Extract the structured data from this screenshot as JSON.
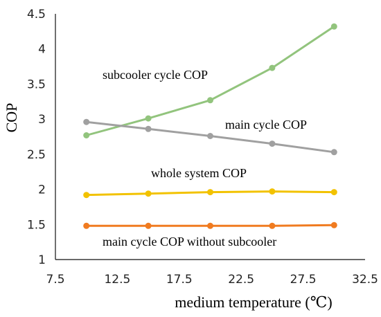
{
  "chart_data": {
    "type": "line",
    "x": [
      10,
      15,
      20,
      25,
      30
    ],
    "xlabel": "medium temperature (℃)",
    "ylabel": "COP",
    "xlim": [
      7.5,
      32.5
    ],
    "ylim": [
      1,
      4.5
    ],
    "xticks": [
      "7.5",
      "12.5",
      "17.5",
      "22.5",
      "27.5",
      "32.5"
    ],
    "yticks": [
      "1",
      "1.5",
      "2",
      "2.5",
      "3",
      "3.5",
      "4",
      "4.5"
    ],
    "grid": false,
    "legend": "none",
    "series": [
      {
        "name": "subcooler cycle COP",
        "values": [
          2.77,
          3.01,
          3.27,
          3.73,
          4.32
        ],
        "color": "#92c47d"
      },
      {
        "name": "main cycle COP",
        "values": [
          2.96,
          2.86,
          2.76,
          2.65,
          2.53
        ],
        "color": "#a0a0a0"
      },
      {
        "name": "whole system COP",
        "values": [
          1.92,
          1.94,
          1.96,
          1.97,
          1.96
        ],
        "color": "#f2c200"
      },
      {
        "name": "main cycle COP without subcooler",
        "values": [
          1.48,
          1.48,
          1.48,
          1.48,
          1.49
        ],
        "color": "#f07b20"
      }
    ]
  }
}
